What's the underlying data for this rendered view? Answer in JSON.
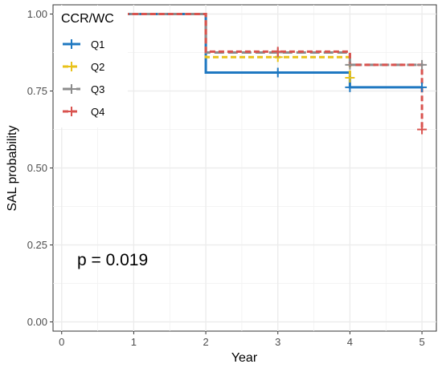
{
  "chart_data": {
    "type": "line",
    "subtype": "step (Kaplan-Meier survival curves)",
    "xlabel": "Year",
    "ylabel": "SAL probability",
    "xlim": [
      -0.12,
      5.2
    ],
    "ylim": [
      -0.03,
      1.03
    ],
    "x_ticks": [
      0,
      1,
      2,
      3,
      4,
      5
    ],
    "x_tick_labels": [
      "0",
      "1",
      "2",
      "3",
      "4",
      "5"
    ],
    "y_ticks": [
      0,
      0.25,
      0.5,
      0.75,
      1.0
    ],
    "y_tick_labels": [
      "0.00",
      "0.25",
      "0.50",
      "0.75",
      "1.00"
    ],
    "grid": true,
    "legend": {
      "title": "CCR/WC",
      "placement": "top-left inside plot",
      "labels": [
        "Q1",
        "Q2",
        "Q3",
        "Q4"
      ]
    },
    "annotation": "p = 0.019",
    "series": [
      {
        "name": "Q1",
        "color": "#1f78c1",
        "dash": "solid",
        "steps": [
          [
            0,
            1.0
          ],
          [
            2,
            0.81
          ],
          [
            4,
            0.762
          ],
          [
            5,
            0.762
          ]
        ],
        "censor_marks": [
          [
            3,
            0.81
          ],
          [
            4,
            0.762
          ],
          [
            5,
            0.762
          ]
        ]
      },
      {
        "name": "Q2",
        "color": "#e8c21a",
        "dash": "dashed",
        "steps": [
          [
            0,
            1.0
          ],
          [
            2,
            0.86
          ],
          [
            4,
            0.793
          ],
          [
            4.0001,
            0.793
          ]
        ],
        "censor_marks": [
          [
            3,
            0.86
          ],
          [
            4,
            0.793
          ]
        ]
      },
      {
        "name": "Q3",
        "color": "#8c8c8c",
        "dash": "longdash",
        "steps": [
          [
            0,
            1.0
          ],
          [
            2,
            0.875
          ],
          [
            4,
            0.835
          ],
          [
            5,
            0.835
          ]
        ],
        "censor_marks": [
          [
            3,
            0.875
          ],
          [
            4,
            0.835
          ],
          [
            5,
            0.835
          ]
        ]
      },
      {
        "name": "Q4",
        "color": "#d9534f",
        "dash": "dashed",
        "steps": [
          [
            0,
            1.0
          ],
          [
            2,
            0.878
          ],
          [
            4,
            0.835
          ],
          [
            5,
            0.625
          ]
        ],
        "censor_marks": [
          [
            3,
            0.878
          ],
          [
            5,
            0.625
          ]
        ]
      }
    ]
  }
}
